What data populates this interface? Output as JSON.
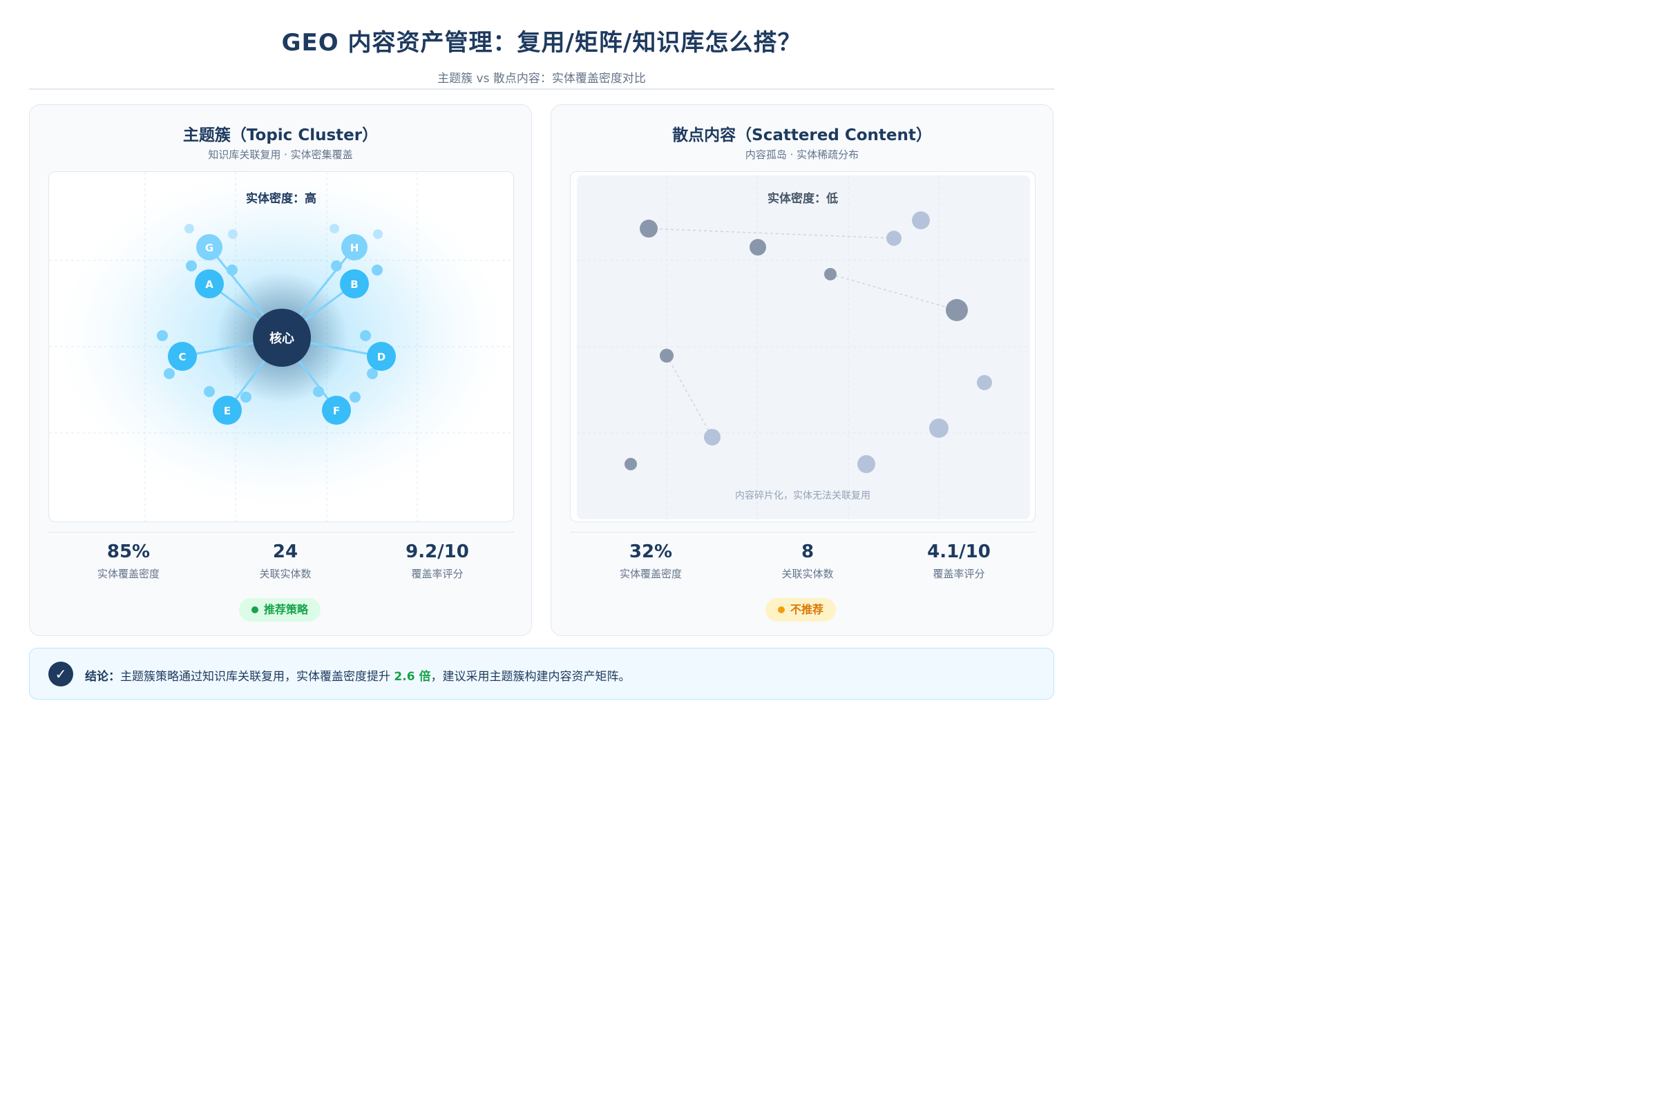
{
  "title": "GEO 内容资产管理：复用/矩阵/知识库怎么搭？",
  "subtitle": "主题簇 vs 散点内容：实体覆盖密度对比",
  "colors": {
    "navy": "#1e3a5f",
    "cluster_blue": "#38bdf8",
    "cluster_light": "#7dd3fc",
    "scatter_gray": "#94a3b8",
    "good_green": "#16a34a",
    "warn_amber": "#d97706"
  },
  "left": {
    "title": "主题簇（Topic Cluster）",
    "subtitle": "知识库关联复用 · 实体密集覆盖",
    "density_label": "实体密度：高",
    "core_label": "核心",
    "nodes": [
      "A",
      "B",
      "C",
      "D",
      "E",
      "F",
      "G",
      "H"
    ],
    "stats": [
      {
        "value": "85%",
        "label": "实体覆盖密度"
      },
      {
        "value": "24",
        "label": "关联实体数"
      },
      {
        "value": "9.2/10",
        "label": "覆盖率评分"
      }
    ],
    "badge": "推荐策略"
  },
  "right": {
    "title": "散点内容（Scattered Content）",
    "subtitle": "内容孤岛 · 实体稀疏分布",
    "density_label": "实体密度：低",
    "note": "内容碎片化，实体无法关联复用",
    "stats": [
      {
        "value": "32%",
        "label": "实体覆盖密度"
      },
      {
        "value": "8",
        "label": "关联实体数"
      },
      {
        "value": "4.1/10",
        "label": "覆盖率评分"
      }
    ],
    "badge": "不推荐"
  },
  "conclusion": {
    "check_icon": "✓",
    "label": "结论：",
    "text_before": "主题簇策略通过知识库关联复用，实体覆盖密度提升 ",
    "highlight": "2.6 倍",
    "text_after": "，建议采用主题簇构建内容资产矩阵。"
  }
}
